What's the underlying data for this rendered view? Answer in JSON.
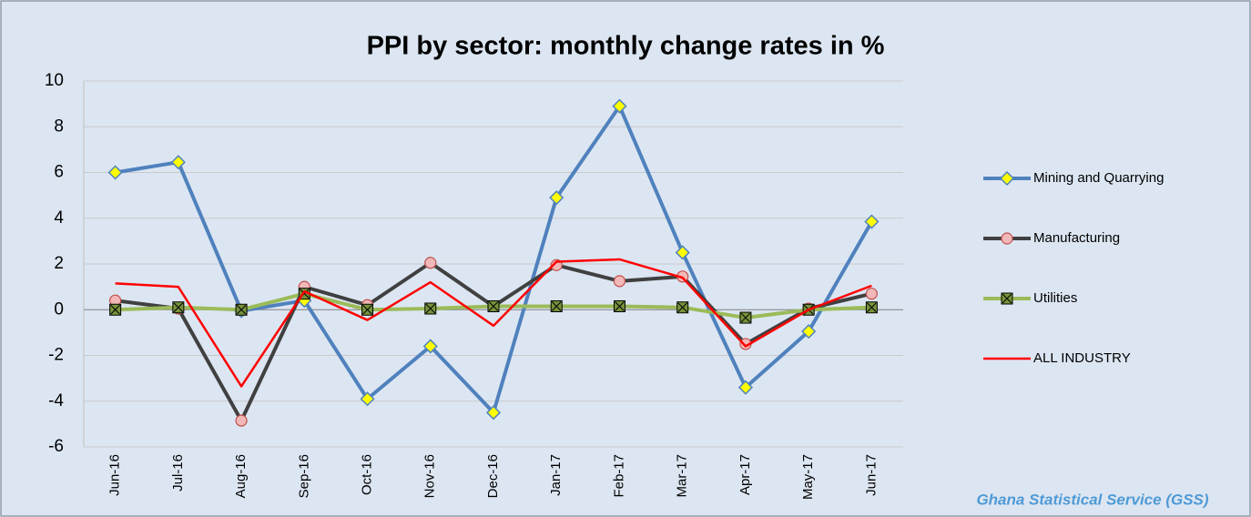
{
  "chart_data": {
    "type": "line",
    "title": "PPI by sector:  monthly change rates in %",
    "source": "Ghana Statistical Service (GSS)",
    "categories": [
      "Jun-16",
      "Jul-16",
      "Aug-16",
      "Sep-16",
      "Oct-16",
      "Nov-16",
      "Dec-16",
      "Jan-17",
      "Feb-17",
      "Mar-17",
      "Apr-17",
      "May-17",
      "Jun-17"
    ],
    "series": [
      {
        "name": "Mining and Quarrying",
        "color": "#4f81bd",
        "marker": "diamond",
        "values": [
          6.0,
          6.45,
          -0.05,
          0.4,
          -3.9,
          -1.6,
          -4.5,
          4.9,
          8.9,
          2.5,
          -3.4,
          -0.95,
          3.85
        ]
      },
      {
        "name": "Manufacturing",
        "color": "#404040",
        "marker": "circle",
        "values": [
          0.4,
          0.05,
          -4.85,
          1.0,
          0.2,
          2.05,
          0.15,
          1.95,
          1.25,
          1.45,
          -1.5,
          0.05,
          0.7
        ]
      },
      {
        "name": "Utilities",
        "color": "#9bbb59",
        "marker": "square",
        "values": [
          0.0,
          0.1,
          0.0,
          0.7,
          0.0,
          0.05,
          0.15,
          0.15,
          0.15,
          0.1,
          -0.35,
          0.0,
          0.1
        ]
      },
      {
        "name": "ALL INDUSTRY",
        "color": "#ff0000",
        "marker": "none",
        "values": [
          1.15,
          1.0,
          -3.35,
          0.8,
          -0.45,
          1.2,
          -0.7,
          2.1,
          2.2,
          1.4,
          -1.6,
          0.0,
          1.05
        ]
      }
    ],
    "ylim": [
      -6,
      10
    ],
    "yticks": [
      -6,
      -4,
      -2,
      0,
      2,
      4,
      6,
      8,
      10
    ],
    "grid": true,
    "legend": "right"
  }
}
